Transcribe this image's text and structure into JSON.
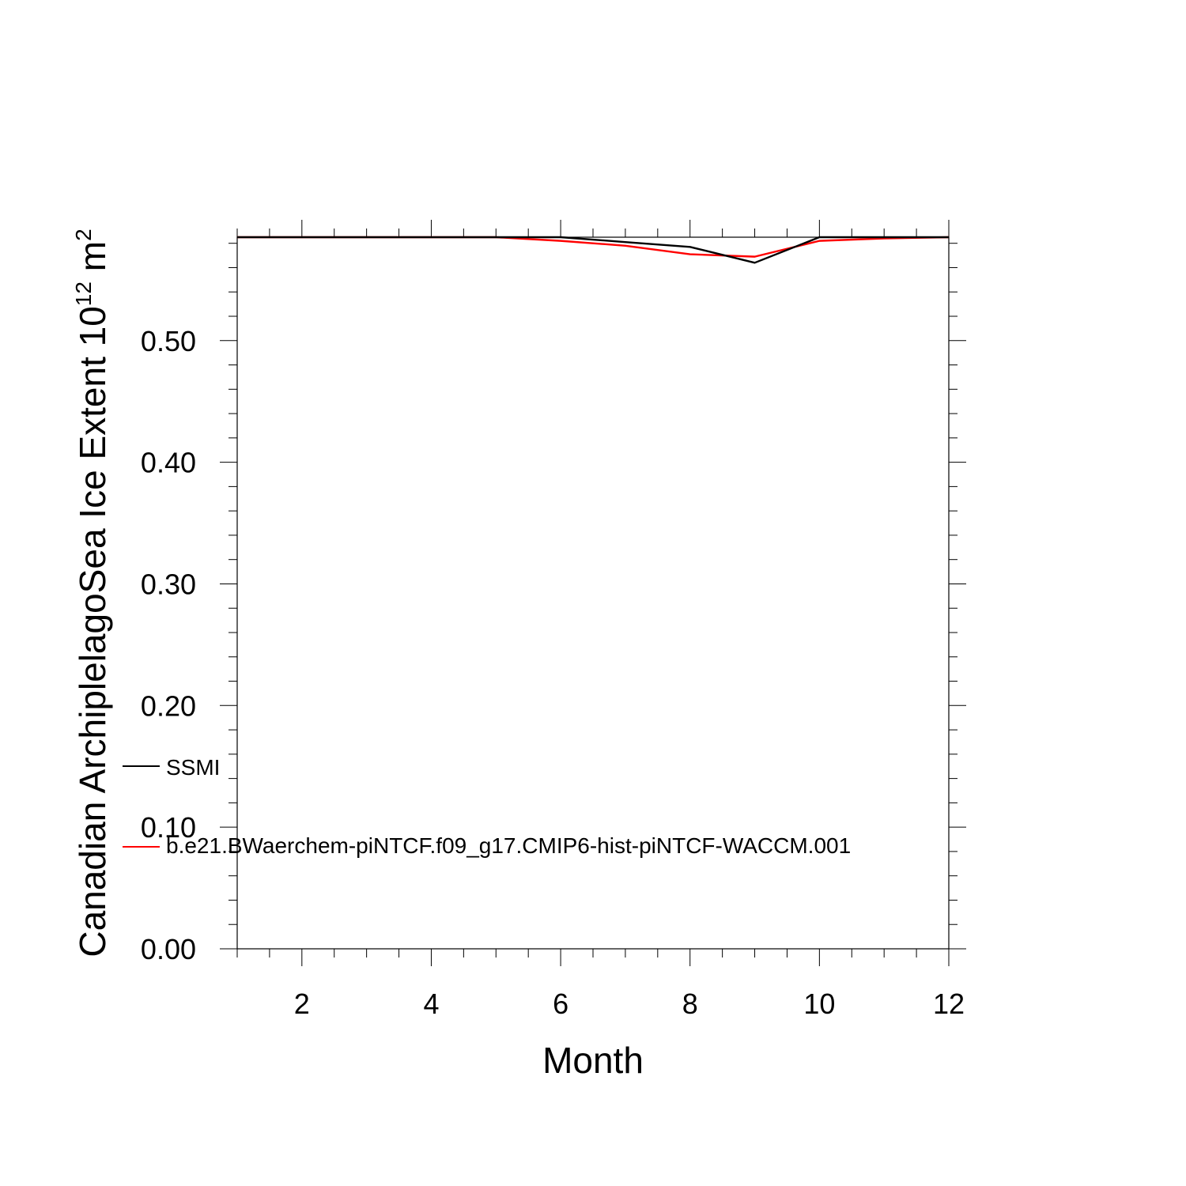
{
  "chart_data": {
    "type": "line",
    "title": "",
    "xlabel": "Month",
    "ylabel": {
      "main": "Canadian ArchiplelagoSea Ice Extent 10",
      "superscript": "12",
      "unit": " m",
      "unit_superscript": "2"
    },
    "xlim": [
      1,
      12
    ],
    "ylim": [
      0,
      0.585
    ],
    "x_ticks": [
      2,
      4,
      6,
      8,
      10,
      12
    ],
    "x_tick_labels": [
      "2",
      "4",
      "6",
      "8",
      "10",
      "12"
    ],
    "y_ticks": [
      0,
      0.1,
      0.2,
      0.3,
      0.4,
      0.5
    ],
    "y_tick_labels": [
      "0.00",
      "0.10",
      "0.20",
      "0.30",
      "0.40",
      "0.50"
    ],
    "grid": false,
    "legend_position": "left-inside-bottom",
    "x": [
      1,
      2,
      3,
      4,
      5,
      6,
      7,
      8,
      9,
      10,
      11,
      12
    ],
    "series": [
      {
        "name": "SSMI",
        "color": "#000000",
        "values": [
          0.585,
          0.585,
          0.585,
          0.585,
          0.585,
          0.585,
          0.581,
          0.577,
          0.564,
          0.585,
          0.585,
          0.585
        ]
      },
      {
        "name": "b.e21.BWaerchem-piNTCF.f09_g17.CMIP6-hist-piNTCF-WACCM.001",
        "color": "#ff0000",
        "values": [
          0.585,
          0.585,
          0.585,
          0.585,
          0.585,
          0.582,
          0.578,
          0.571,
          0.569,
          0.582,
          0.584,
          0.585
        ]
      }
    ]
  }
}
